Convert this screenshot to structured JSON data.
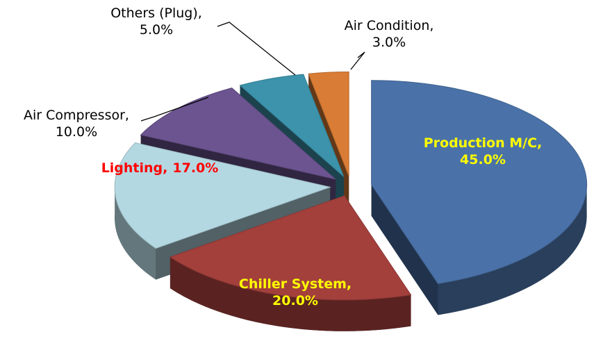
{
  "chart_data": {
    "type": "pie",
    "categories": [
      "Production M/C,",
      "Chiller System,",
      "Lighting,",
      "Air Compressor,",
      "Others (Plug),",
      "Air Condition,"
    ],
    "values": [
      45,
      20,
      17,
      10,
      5,
      3
    ],
    "value_labels": [
      "45.0%",
      "20.0%",
      "17.0%",
      "10.0%",
      "5.0%",
      "3.0%"
    ],
    "colors": [
      "#4a72a8",
      "#a3403c",
      "#b4d8e2",
      "#6b5490",
      "#3c93ab",
      "#d97c35"
    ],
    "label_colors": [
      "#ffff00",
      "#ffff00",
      "#ff0000",
      "#000000",
      "#000000",
      "#000000"
    ]
  }
}
